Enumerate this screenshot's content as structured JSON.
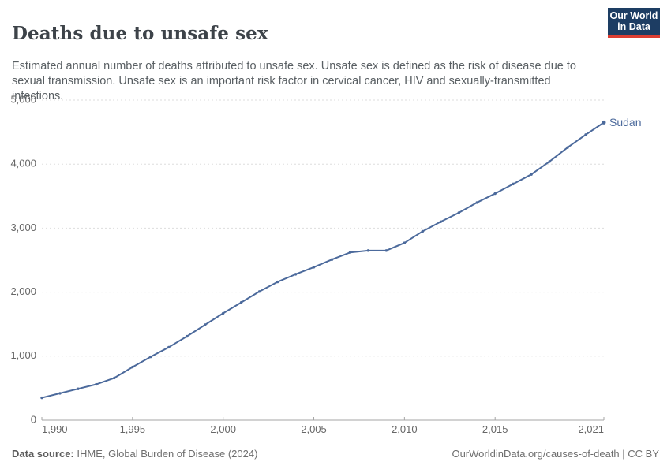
{
  "header": {
    "title": "Deaths due to unsafe sex",
    "subtitle": "Estimated annual number of deaths attributed to unsafe sex. Unsafe sex is defined as the risk of disease due to sexual transmission. Unsafe sex is an important risk factor in cervical cancer, HIV and sexually-transmitted infections.",
    "logo": {
      "line1": "Our World",
      "line2": "in Data",
      "bg_color": "#1d3d63",
      "bar_color": "#dc3e32"
    }
  },
  "chart_data": {
    "type": "line",
    "title": "Deaths due to unsafe sex",
    "xlabel": "",
    "ylabel": "",
    "x": [
      1990,
      1991,
      1992,
      1993,
      1994,
      1995,
      1996,
      1997,
      1998,
      1999,
      2000,
      2001,
      2002,
      2003,
      2004,
      2005,
      2006,
      2007,
      2008,
      2009,
      2010,
      2011,
      2012,
      2013,
      2014,
      2015,
      2016,
      2017,
      2018,
      2019,
      2020,
      2021
    ],
    "series": [
      {
        "name": "Sudan",
        "color": "#4C6A9C",
        "values": [
          350,
          420,
          490,
          560,
          660,
          830,
          990,
          1140,
          1310,
          1490,
          1670,
          1840,
          2010,
          2160,
          2280,
          2390,
          2510,
          2620,
          2650,
          2650,
          2770,
          2950,
          3100,
          3240,
          3400,
          3540,
          3690,
          3840,
          4040,
          4260,
          4460,
          4650
        ]
      }
    ],
    "xlim": [
      1990,
      2021
    ],
    "ylim": [
      0,
      5000
    ],
    "x_ticks": [
      1990,
      1995,
      2000,
      2005,
      2010,
      2015,
      2021
    ],
    "y_ticks": [
      0,
      1000,
      2000,
      3000,
      4000,
      5000
    ],
    "grid": "horizontal-dashed",
    "legend": "end-of-line-label"
  },
  "footer": {
    "source_label": "Data source:",
    "source_text": " IHME, Global Burden of Disease (2024)",
    "link_text": "OurWorldinData.org/causes-of-death | CC BY"
  },
  "colors": {
    "line": "#4C6A9C",
    "gridline": "#dddddd",
    "axis": "#a5a5a5",
    "tick_text": "#676767"
  }
}
